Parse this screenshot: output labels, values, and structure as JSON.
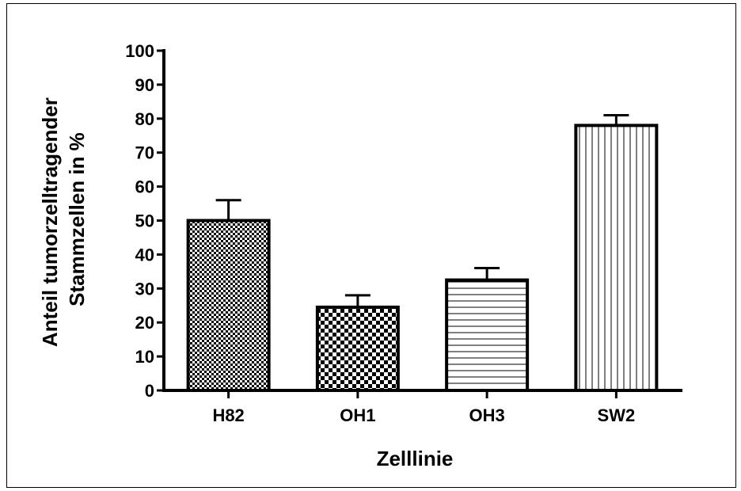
{
  "chart_data": {
    "type": "bar",
    "title": "",
    "xlabel": "Zelllinie",
    "ylabel_lines": [
      "Anteil tumorzelltragender",
      "Stammzellen in %"
    ],
    "categories": [
      "H82",
      "OH1",
      "OH3",
      "SW2"
    ],
    "values": [
      50,
      24.5,
      32.5,
      78
    ],
    "error_upper": [
      56,
      28,
      36,
      81
    ],
    "patterns": [
      "checker-fine",
      "checker-coarse",
      "horizontal-lines",
      "vertical-lines"
    ],
    "ylim": [
      0,
      100
    ],
    "yticks": [
      0,
      10,
      20,
      30,
      40,
      50,
      60,
      70,
      80,
      90,
      100
    ],
    "grid": false,
    "legend": "none"
  }
}
